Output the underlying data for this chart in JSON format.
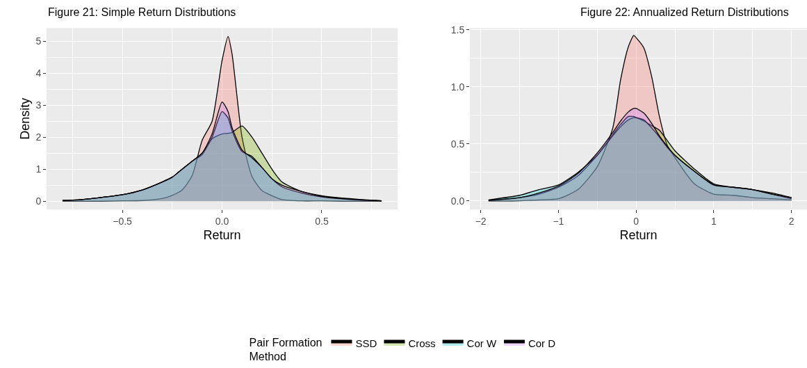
{
  "chart_data": [
    {
      "type": "area",
      "title": "Figure 21: Simple Return Distributions",
      "xlabel": "Return",
      "ylabel": "Density",
      "x": [
        -0.8,
        -0.7,
        -0.6,
        -0.5,
        -0.4,
        -0.3,
        -0.25,
        -0.2,
        -0.15,
        -0.1,
        -0.05,
        0,
        0.03,
        0.05,
        0.1,
        0.15,
        0.2,
        0.25,
        0.3,
        0.4,
        0.5,
        0.6,
        0.7,
        0.8
      ],
      "series": [
        {
          "name": "SSD",
          "color": "#f8766d",
          "values": [
            0,
            0,
            0,
            0.01,
            0.02,
            0.08,
            0.18,
            0.35,
            0.8,
            1.9,
            2.5,
            4.4,
            5.15,
            4.6,
            2.0,
            0.77,
            0.33,
            0.17,
            0.05,
            0.01,
            0.01,
            0,
            0,
            0
          ]
        },
        {
          "name": "Cross",
          "color": "#7cae00",
          "values": [
            0.02,
            0.05,
            0.12,
            0.2,
            0.35,
            0.6,
            0.75,
            1.0,
            1.25,
            1.45,
            1.95,
            2.1,
            2.12,
            2.15,
            2.35,
            2.0,
            1.5,
            1.0,
            0.6,
            0.3,
            0.17,
            0.1,
            0.05,
            0.01
          ]
        },
        {
          "name": "Cor W",
          "color": "#00bfc4",
          "values": [
            0.02,
            0.05,
            0.12,
            0.2,
            0.35,
            0.6,
            0.75,
            1.0,
            1.25,
            1.5,
            2.0,
            2.8,
            2.6,
            2.2,
            1.55,
            1.4,
            1.05,
            0.7,
            0.45,
            0.25,
            0.13,
            0.07,
            0.03,
            0.01
          ]
        },
        {
          "name": "Cor D",
          "color": "#c77cff",
          "values": [
            0.02,
            0.05,
            0.12,
            0.2,
            0.35,
            0.6,
            0.75,
            1.0,
            1.25,
            1.5,
            2.1,
            3.1,
            2.8,
            2.3,
            1.6,
            1.35,
            1.05,
            0.7,
            0.5,
            0.3,
            0.15,
            0.08,
            0.04,
            0.01
          ]
        }
      ],
      "xlim": [
        -0.88,
        0.88
      ],
      "xticks": [
        {
          "value": -0.5,
          "label": "−0.5"
        },
        {
          "value": 0,
          "label": "0.0"
        },
        {
          "value": 0.5,
          "label": "0.5"
        }
      ],
      "ylim": [
        -0.26,
        5.41
      ],
      "yticks": [
        0,
        1,
        2,
        3,
        4,
        5
      ],
      "grid": true,
      "legend": "bottom",
      "legend_title": "Pair Formation Method"
    },
    {
      "type": "area",
      "title": "Figure 22: Annualized Return Distributions",
      "xlabel": "Return",
      "x": [
        -1.9,
        -1.5,
        -1.25,
        -1,
        -0.75,
        -0.5,
        -0.3,
        -0.2,
        -0.1,
        -0.03,
        0,
        0.1,
        0.2,
        0.3,
        0.4,
        0.5,
        0.75,
        1,
        1.25,
        1.5,
        1.75,
        2
      ],
      "series": [
        {
          "color": "#f8766d",
          "values": [
            0,
            0.002,
            0.01,
            0.02,
            0.1,
            0.3,
            0.64,
            1.06,
            1.35,
            1.45,
            1.43,
            1.34,
            1.09,
            0.74,
            0.49,
            0.38,
            0.15,
            0.06,
            0.05,
            0.03,
            0.02,
            0.01
          ]
        },
        {
          "color": "#7cae00",
          "values": [
            0.005,
            0.03,
            0.06,
            0.12,
            0.22,
            0.4,
            0.57,
            0.65,
            0.71,
            0.73,
            0.73,
            0.7,
            0.66,
            0.62,
            0.53,
            0.44,
            0.28,
            0.15,
            0.12,
            0.1,
            0.07,
            0.03
          ]
        },
        {
          "color": "#00bfc4",
          "values": [
            0.01,
            0.05,
            0.1,
            0.14,
            0.25,
            0.4,
            0.58,
            0.67,
            0.74,
            0.74,
            0.73,
            0.71,
            0.64,
            0.56,
            0.47,
            0.4,
            0.26,
            0.14,
            0.12,
            0.1,
            0.06,
            0.02
          ]
        },
        {
          "color": "#c77cff",
          "values": [
            0.005,
            0.03,
            0.07,
            0.13,
            0.24,
            0.42,
            0.6,
            0.7,
            0.78,
            0.81,
            0.81,
            0.77,
            0.68,
            0.57,
            0.48,
            0.4,
            0.26,
            0.14,
            0.12,
            0.1,
            0.06,
            0.03
          ]
        }
      ],
      "xlim": [
        -2.14,
        2.2
      ],
      "xticks": [
        {
          "value": -2,
          "label": "−2"
        },
        {
          "value": -1,
          "label": "−1"
        },
        0,
        1,
        2
      ],
      "ylim": [
        -0.074,
        1.514
      ],
      "yticks": [
        {
          "value": 0,
          "label": "0.0"
        },
        0.5,
        {
          "value": 1,
          "label": "1.0"
        },
        1.5
      ],
      "grid": true,
      "legend": "bottom"
    }
  ]
}
